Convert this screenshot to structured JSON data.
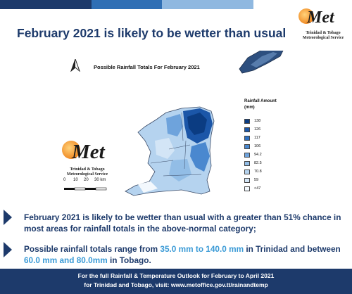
{
  "headline": "February 2021 is likely to be wetter than usual",
  "logo": {
    "wordmark": "Met",
    "tagline_line1": "Trinidad & Tobago",
    "tagline_line2": "Meteorological Service"
  },
  "map": {
    "title": "Possible Rainfall Totals For February 2021",
    "legend": {
      "title_line1": "Rainfall Amount",
      "title_line2": "(mm)",
      "items": [
        {
          "label": "138",
          "color": "#0b3c82"
        },
        {
          "label": "126",
          "color": "#1b56a8"
        },
        {
          "label": "117",
          "color": "#2e6fbf"
        },
        {
          "label": "106",
          "color": "#4a88cf"
        },
        {
          "label": "94.2",
          "color": "#6ea3dc"
        },
        {
          "label": "82.5",
          "color": "#92bde6"
        },
        {
          "label": "70.8",
          "color": "#b5d3ef"
        },
        {
          "label": "59",
          "color": "#d3e5f6"
        },
        {
          "label": "<47",
          "color": "#f3f8fd"
        }
      ]
    },
    "scale": {
      "labels": [
        "0",
        "10",
        "20",
        "30 km"
      ]
    }
  },
  "bullets": {
    "b1": "February 2021 is likely to be wetter than usual with a greater than 51% chance in most areas for rainfall totals in the above-normal category;",
    "b2_part1": "Possible rainfall totals range from ",
    "b2_hl1": "35.0 mm to 140.0 mm",
    "b2_part2": " in Trinidad and between ",
    "b2_hl2": "60.0 mm and 80.0mm",
    "b2_part3": " in Tobago."
  },
  "footer": {
    "line1": "For the full Rainfall & Temperature Outlook  for  February to April 2021",
    "line2": "for Trinidad and Tobago, visit: www.metoffice.gov.tt/rainandtemp"
  }
}
